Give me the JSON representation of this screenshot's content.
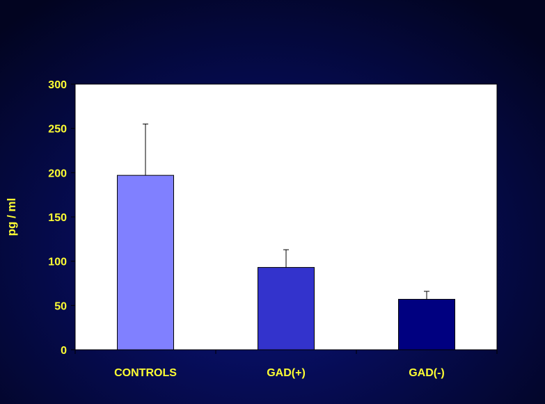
{
  "chart_data": {
    "type": "bar",
    "title": "",
    "xlabel": "",
    "ylabel": "pg / ml",
    "categories": [
      "CONTROLS",
      "GAD(+)",
      "GAD(-)"
    ],
    "values": [
      197,
      93,
      57
    ],
    "error_upper": [
      255,
      113,
      66
    ],
    "bar_colors": [
      "#8080ff",
      "#3333cc",
      "#000080"
    ],
    "ylim": [
      0,
      300
    ],
    "yticks": [
      0,
      50,
      100,
      150,
      200,
      250,
      300
    ],
    "grid": false,
    "legend": "none",
    "plot_background": "#ffffff",
    "label_color": "#ffff33"
  }
}
